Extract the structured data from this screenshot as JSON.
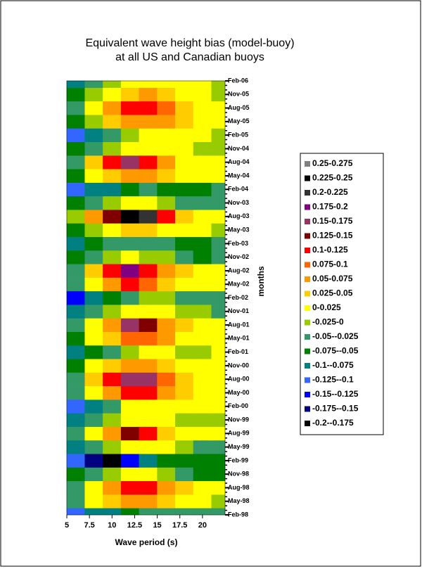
{
  "chart_data": {
    "type": "contour",
    "title": [
      "Equivalent wave height bias (model-buoy)",
      "at all US and Canadian buoys"
    ],
    "x_label": "Wave period (s)",
    "y_label": "months",
    "xlim": [
      5,
      22.5
    ],
    "xticks": [
      5,
      7.5,
      10,
      12.5,
      15,
      17.5,
      20
    ],
    "x": [
      6,
      8,
      10,
      12,
      14,
      16,
      18,
      20,
      22
    ],
    "y": [
      "Feb-98",
      "May-98",
      "Aug-98",
      "Nov-98",
      "Feb-99",
      "May-99",
      "Aug-99",
      "Nov-99",
      "Feb-00",
      "May-00",
      "Aug-00",
      "Nov-00",
      "Feb-01",
      "May-01",
      "Aug-01",
      "Nov-01",
      "Feb-02",
      "May-02",
      "Aug-02",
      "Nov-02",
      "Feb-03",
      "May-03",
      "Aug-03",
      "Nov-03",
      "Feb-04",
      "May-04",
      "Aug-04",
      "Nov-04",
      "Feb-05",
      "May-05",
      "Aug-05",
      "Nov-05",
      "Feb-06"
    ],
    "z": [
      [
        -0.12,
        -0.1,
        -0.08,
        -0.06,
        -0.05,
        -0.05,
        -0.03,
        -0.03,
        -0.03
      ],
      [
        -0.05,
        0.01,
        0.03,
        0.06,
        0.06,
        0.03,
        0.01,
        0,
        -0.01
      ],
      [
        -0.03,
        0.02,
        0.05,
        0.11,
        0.1,
        0.05,
        0.03,
        0.01,
        0
      ],
      [
        -0.06,
        -0.04,
        -0.02,
        0,
        0,
        -0.02,
        -0.04,
        -0.06,
        -0.06
      ],
      [
        -0.12,
        -0.16,
        -0.18,
        -0.14,
        -0.1,
        -0.07,
        -0.06,
        -0.06,
        -0.06
      ],
      [
        -0.08,
        -0.04,
        -0.02,
        0,
        0.01,
        0,
        -0.02,
        -0.04,
        -0.05
      ],
      [
        -0.05,
        0,
        0.05,
        0.13,
        0.1,
        0.04,
        0.02,
        0.01,
        0
      ],
      [
        -0.08,
        -0.05,
        -0.02,
        0,
        0.01,
        0,
        -0.01,
        -0.02,
        -0.02
      ],
      [
        -0.12,
        -0.08,
        -0.03,
        0.01,
        0.02,
        0.01,
        0.01,
        0.01,
        0.01
      ],
      [
        -0.05,
        0.01,
        0.05,
        0.1,
        0.12,
        0.06,
        0.03,
        0.02,
        0.01
      ],
      [
        -0.03,
        0.03,
        0.1,
        0.17,
        0.15,
        0.08,
        0.04,
        0.02,
        0.01
      ],
      [
        -0.06,
        0,
        0.03,
        0.05,
        0.05,
        0.03,
        0.02,
        0.01,
        0.01
      ],
      [
        -0.1,
        -0.07,
        -0.04,
        -0.01,
        0,
        0,
        -0.01,
        -0.01,
        0
      ],
      [
        -0.06,
        0,
        0.04,
        0.08,
        0.08,
        0.05,
        0.02,
        0.01,
        0
      ],
      [
        -0.05,
        0.01,
        0.06,
        0.16,
        0.13,
        0.05,
        0.03,
        0.01,
        0
      ],
      [
        -0.08,
        -0.05,
        -0.02,
        0.01,
        0.02,
        0,
        -0.02,
        -0.02,
        -0.03
      ],
      [
        -0.13,
        -0.1,
        -0.06,
        -0.03,
        -0.01,
        -0.02,
        -0.03,
        -0.03,
        -0.03
      ],
      [
        -0.04,
        0.02,
        0.06,
        0.1,
        0.08,
        0.04,
        0.02,
        0.01,
        0
      ],
      [
        -0.03,
        0.03,
        0.1,
        0.18,
        0.12,
        0.06,
        0.03,
        0.02,
        0.01
      ],
      [
        -0.06,
        -0.04,
        -0.01,
        0,
        -0.01,
        -0.02,
        -0.03,
        -0.06,
        -0.05
      ],
      [
        -0.1,
        -0.06,
        -0.04,
        -0.03,
        -0.04,
        -0.05,
        -0.06,
        -0.06,
        -0.05
      ],
      [
        -0.06,
        -0.02,
        0.01,
        0.03,
        0.03,
        0.02,
        0.01,
        0,
        -0.01
      ],
      [
        -0.02,
        0.05,
        0.13,
        0.23,
        0.2,
        0.1,
        0.04,
        0.02,
        0
      ],
      [
        -0.07,
        -0.04,
        -0.02,
        0,
        0,
        -0.02,
        -0.04,
        -0.05,
        -0.05
      ],
      [
        -0.12,
        -0.1,
        -0.08,
        -0.06,
        -0.05,
        -0.06,
        -0.07,
        -0.06,
        -0.05
      ],
      [
        -0.06,
        0,
        0.04,
        0.06,
        0.05,
        0.03,
        0.02,
        0.01,
        0
      ],
      [
        -0.03,
        0.04,
        0.12,
        0.17,
        0.12,
        0.05,
        0.02,
        0.01,
        0
      ],
      [
        -0.07,
        -0.04,
        -0.01,
        0.01,
        0.02,
        0.01,
        0,
        -0.01,
        -0.02
      ],
      [
        -0.12,
        -0.08,
        -0.05,
        -0.02,
        0,
        0.01,
        0.01,
        0,
        -0.01
      ],
      [
        -0.06,
        -0.01,
        0.03,
        0.06,
        0.07,
        0.06,
        0.03,
        0.01,
        0
      ],
      [
        -0.05,
        0,
        0.05,
        0.1,
        0.12,
        0.08,
        0.04,
        0.01,
        0
      ],
      [
        -0.06,
        -0.02,
        0.02,
        0.04,
        0.05,
        0.04,
        0.02,
        0,
        -0.01
      ],
      [
        -0.08,
        -0.04,
        -0.01,
        0.01,
        0.02,
        0.02,
        0.01,
        0,
        -0.01
      ]
    ],
    "levels": [
      -0.2,
      -0.175,
      -0.15,
      -0.125,
      -0.1,
      -0.075,
      -0.05,
      -0.025,
      0,
      0.025,
      0.05,
      0.075,
      0.1,
      0.125,
      0.15,
      0.175,
      0.2,
      0.225,
      0.25,
      0.275
    ],
    "legend": [
      {
        "label": "0.25-0.275",
        "color": "#808080"
      },
      {
        "label": "0.225-0.25",
        "color": "#000000"
      },
      {
        "label": "0.2-0.225",
        "color": "#333333"
      },
      {
        "label": "0.175-0.2",
        "color": "#800080"
      },
      {
        "label": "0.15-0.175",
        "color": "#993366"
      },
      {
        "label": "0.125-0.15",
        "color": "#800000"
      },
      {
        "label": "0.1-0.125",
        "color": "#ff0000"
      },
      {
        "label": "0.075-0.1",
        "color": "#ff6600"
      },
      {
        "label": "0.05-0.075",
        "color": "#ff9900"
      },
      {
        "label": "0.025-0.05",
        "color": "#ffcc00"
      },
      {
        "label": "0-0.025",
        "color": "#ffff00"
      },
      {
        "label": "-0.025-0",
        "color": "#99cc00"
      },
      {
        "label": "-0.05--0.025",
        "color": "#339966"
      },
      {
        "label": "-0.075--0.05",
        "color": "#008000"
      },
      {
        "label": "-0.1--0.075",
        "color": "#008080"
      },
      {
        "label": "-0.125--0.1",
        "color": "#3366ff"
      },
      {
        "label": "-0.15--0.125",
        "color": "#0000ff"
      },
      {
        "label": "-0.175--0.15",
        "color": "#000080"
      },
      {
        "label": "-0.2--0.175",
        "color": "#000000"
      }
    ]
  }
}
